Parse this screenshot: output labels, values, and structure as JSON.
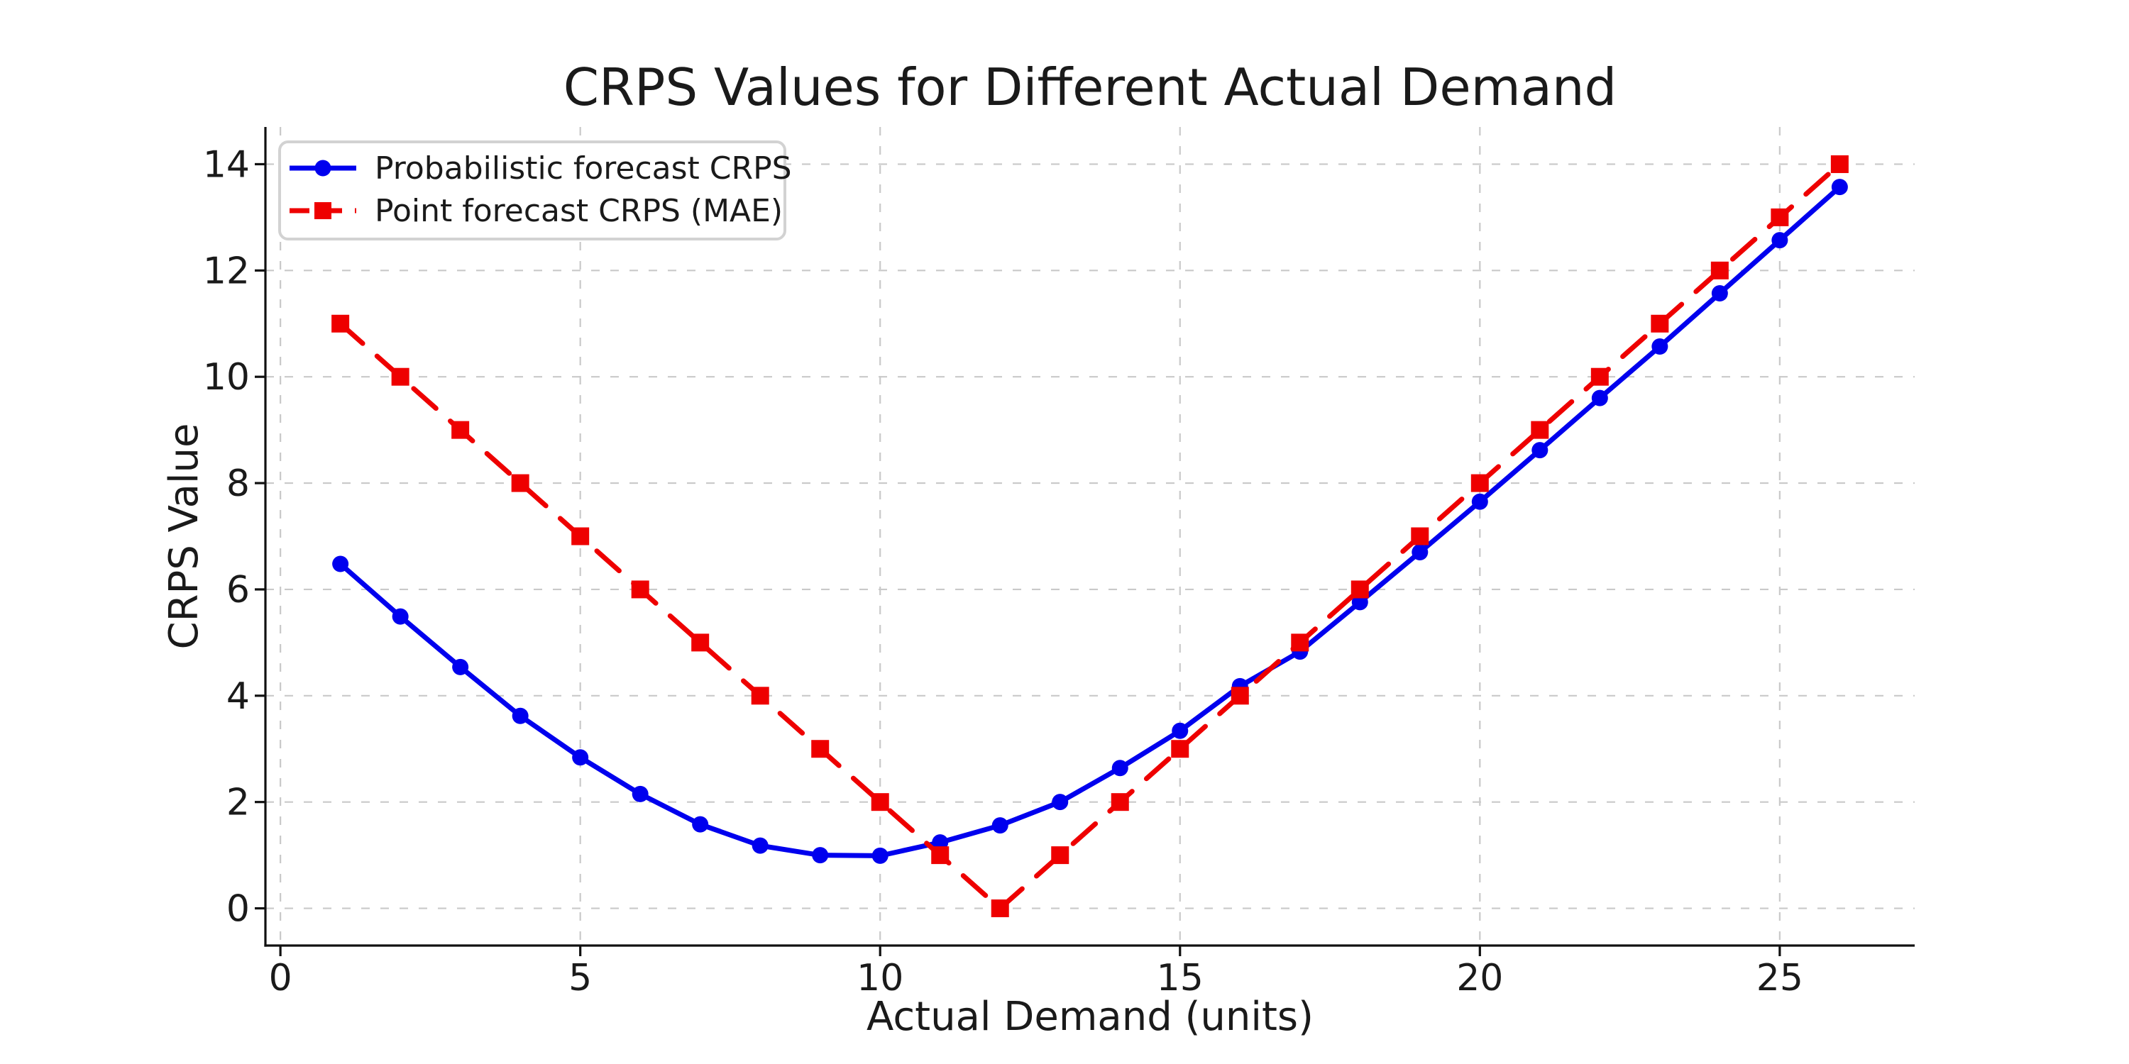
{
  "chart_data": {
    "type": "line",
    "title": "CRPS Values for Different Actual Demand",
    "xlabel": "Actual Demand (units)",
    "ylabel": "CRPS Value",
    "x": [
      1,
      2,
      3,
      4,
      5,
      6,
      7,
      8,
      9,
      10,
      11,
      12,
      13,
      14,
      15,
      16,
      17,
      18,
      19,
      20,
      21,
      22,
      23,
      24,
      25,
      26
    ],
    "series": [
      {
        "name": "Probabilistic forecast CRPS",
        "color": "#0000ee",
        "line_style": "solid",
        "marker": "circle",
        "values": [
          6.48,
          5.49,
          4.54,
          3.62,
          2.84,
          2.15,
          1.58,
          1.18,
          1.0,
          0.99,
          1.24,
          1.56,
          2.0,
          2.64,
          3.34,
          4.18,
          4.83,
          5.76,
          6.7,
          7.65,
          8.62,
          9.6,
          10.57,
          11.57,
          12.57,
          13.57
        ]
      },
      {
        "name": "Point forecast CRPS (MAE)",
        "color": "#ee0000",
        "line_style": "dashed",
        "marker": "square",
        "values": [
          11,
          10,
          9,
          8,
          7,
          6,
          5,
          4,
          3,
          2,
          1,
          0,
          1,
          2,
          3,
          4,
          5,
          6,
          7,
          8,
          9,
          10,
          11,
          12,
          13,
          14
        ]
      }
    ],
    "xticks": [
      0,
      5,
      10,
      15,
      20,
      25
    ],
    "yticks": [
      0,
      2,
      4,
      6,
      8,
      10,
      12,
      14
    ],
    "xlim": [
      -0.25,
      27.25
    ],
    "ylim": [
      -0.7,
      14.7
    ],
    "grid": true,
    "legend_position": "upper left"
  }
}
